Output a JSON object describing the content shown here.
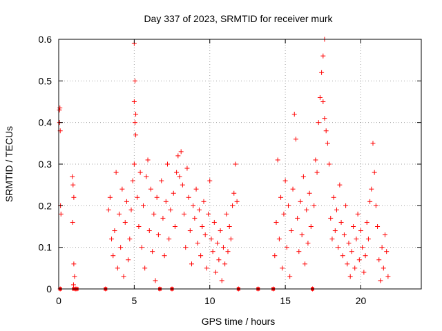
{
  "chart_data": {
    "type": "scatter",
    "title": "Day 337 of 2023, SRMTID for receiver murk",
    "xlabel": "GPS time / hours",
    "ylabel": "SRMTID / TECUs",
    "xlim": [
      0,
      24
    ],
    "ylim": [
      0,
      0.6
    ],
    "xticks": [
      0,
      5,
      10,
      15,
      20
    ],
    "xtick_labels": [
      "0",
      "5",
      "10",
      "15",
      "20"
    ],
    "yticks": [
      0,
      0.1,
      0.2,
      0.3,
      0.4,
      0.5,
      0.6
    ],
    "ytick_labels": [
      "0",
      "0.1",
      "0.2",
      "0.3",
      "0.4",
      "0.5",
      "0.6"
    ],
    "grid": true,
    "marker": "plus",
    "color": "#ff0000",
    "series": [
      {
        "name": "SRMTID",
        "points": [
          [
            0.05,
            0.43
          ],
          [
            0.08,
            0.435
          ],
          [
            0.06,
            0.4
          ],
          [
            0.1,
            0.38
          ],
          [
            0.12,
            0.2
          ],
          [
            0.15,
            0.18
          ],
          [
            0.1,
            0.0
          ],
          [
            0.9,
            0.27
          ],
          [
            0.95,
            0.25
          ],
          [
            1.0,
            0.22
          ],
          [
            0.92,
            0.16
          ],
          [
            1.0,
            0.06
          ],
          [
            1.05,
            0.03
          ],
          [
            0.98,
            0.01
          ],
          [
            1.1,
            0.0
          ],
          [
            1.2,
            0.0
          ],
          [
            3.1,
            0.0
          ],
          [
            3.3,
            0.19
          ],
          [
            3.4,
            0.22
          ],
          [
            3.5,
            0.12
          ],
          [
            3.6,
            0.08
          ],
          [
            3.7,
            0.14
          ],
          [
            3.8,
            0.28
          ],
          [
            3.9,
            0.05
          ],
          [
            4.0,
            0.18
          ],
          [
            4.1,
            0.1
          ],
          [
            4.2,
            0.24
          ],
          [
            4.3,
            0.03
          ],
          [
            4.4,
            0.16
          ],
          [
            4.5,
            0.21
          ],
          [
            4.6,
            0.07
          ],
          [
            4.7,
            0.12
          ],
          [
            4.8,
            0.19
          ],
          [
            4.9,
            0.26
          ],
          [
            5.0,
            0.59
          ],
          [
            5.05,
            0.5
          ],
          [
            5.0,
            0.45
          ],
          [
            5.1,
            0.42
          ],
          [
            5.05,
            0.4
          ],
          [
            5.1,
            0.37
          ],
          [
            5.0,
            0.3
          ],
          [
            5.2,
            0.22
          ],
          [
            5.3,
            0.15
          ],
          [
            5.4,
            0.28
          ],
          [
            5.5,
            0.1
          ],
          [
            5.6,
            0.2
          ],
          [
            5.7,
            0.05
          ],
          [
            5.8,
            0.27
          ],
          [
            5.9,
            0.31
          ],
          [
            6.0,
            0.14
          ],
          [
            6.1,
            0.24
          ],
          [
            6.2,
            0.09
          ],
          [
            6.3,
            0.18
          ],
          [
            6.4,
            0.02
          ],
          [
            6.5,
            0.22
          ],
          [
            6.6,
            0.13
          ],
          [
            6.7,
            0.0
          ],
          [
            6.8,
            0.26
          ],
          [
            6.9,
            0.17
          ],
          [
            7.0,
            0.08
          ],
          [
            7.1,
            0.21
          ],
          [
            7.2,
            0.3
          ],
          [
            7.3,
            0.12
          ],
          [
            7.4,
            0.19
          ],
          [
            7.5,
            0.0
          ],
          [
            7.6,
            0.23
          ],
          [
            7.7,
            0.15
          ],
          [
            7.8,
            0.28
          ],
          [
            7.9,
            0.32
          ],
          [
            8.0,
            0.27
          ],
          [
            8.1,
            0.33
          ],
          [
            8.2,
            0.25
          ],
          [
            8.3,
            0.18
          ],
          [
            8.4,
            0.1
          ],
          [
            8.5,
            0.29
          ],
          [
            8.6,
            0.22
          ],
          [
            8.7,
            0.14
          ],
          [
            8.8,
            0.06
          ],
          [
            8.9,
            0.2
          ],
          [
            9.0,
            0.17
          ],
          [
            9.1,
            0.24
          ],
          [
            9.2,
            0.11
          ],
          [
            9.3,
            0.19
          ],
          [
            9.4,
            0.08
          ],
          [
            9.5,
            0.15
          ],
          [
            9.6,
            0.21
          ],
          [
            9.7,
            0.13
          ],
          [
            9.8,
            0.05
          ],
          [
            9.9,
            0.18
          ],
          [
            10.0,
            0.26
          ],
          [
            10.1,
            0.12
          ],
          [
            10.2,
            0.09
          ],
          [
            10.3,
            0.16
          ],
          [
            10.4,
            0.04
          ],
          [
            10.5,
            0.11
          ],
          [
            10.6,
            0.07
          ],
          [
            10.7,
            0.14
          ],
          [
            10.8,
            0.02
          ],
          [
            10.9,
            0.1
          ],
          [
            11.0,
            0.06
          ],
          [
            11.1,
            0.18
          ],
          [
            11.2,
            0.09
          ],
          [
            11.3,
            0.15
          ],
          [
            11.4,
            0.12
          ],
          [
            11.5,
            0.2
          ],
          [
            11.6,
            0.23
          ],
          [
            11.7,
            0.3
          ],
          [
            11.8,
            0.21
          ],
          [
            11.9,
            0.0
          ],
          [
            13.2,
            0.0
          ],
          [
            14.2,
            0.0
          ],
          [
            14.3,
            0.08
          ],
          [
            14.4,
            0.16
          ],
          [
            14.5,
            0.31
          ],
          [
            14.6,
            0.12
          ],
          [
            14.7,
            0.22
          ],
          [
            14.8,
            0.05
          ],
          [
            14.9,
            0.18
          ],
          [
            15.0,
            0.26
          ],
          [
            15.1,
            0.1
          ],
          [
            15.2,
            0.2
          ],
          [
            15.3,
            0.03
          ],
          [
            15.4,
            0.14
          ],
          [
            15.5,
            0.24
          ],
          [
            15.6,
            0.42
          ],
          [
            15.7,
            0.36
          ],
          [
            15.8,
            0.17
          ],
          [
            15.9,
            0.09
          ],
          [
            16.0,
            0.21
          ],
          [
            16.1,
            0.13
          ],
          [
            16.2,
            0.27
          ],
          [
            16.3,
            0.06
          ],
          [
            16.4,
            0.19
          ],
          [
            16.5,
            0.11
          ],
          [
            16.6,
            0.23
          ],
          [
            16.7,
            0.15
          ],
          [
            16.8,
            0.0
          ],
          [
            16.9,
            0.2
          ],
          [
            17.0,
            0.31
          ],
          [
            17.1,
            0.28
          ],
          [
            17.2,
            0.4
          ],
          [
            17.3,
            0.46
          ],
          [
            17.4,
            0.52
          ],
          [
            17.5,
            0.56
          ],
          [
            17.6,
            0.6
          ],
          [
            17.5,
            0.45
          ],
          [
            17.6,
            0.41
          ],
          [
            17.7,
            0.38
          ],
          [
            17.8,
            0.35
          ],
          [
            17.9,
            0.3
          ],
          [
            18.0,
            0.17
          ],
          [
            18.1,
            0.12
          ],
          [
            18.2,
            0.22
          ],
          [
            18.3,
            0.14
          ],
          [
            18.4,
            0.19
          ],
          [
            18.5,
            0.1
          ],
          [
            18.6,
            0.25
          ],
          [
            18.7,
            0.16
          ],
          [
            18.8,
            0.08
          ],
          [
            18.9,
            0.13
          ],
          [
            19.0,
            0.2
          ],
          [
            19.1,
            0.06
          ],
          [
            19.2,
            0.11
          ],
          [
            19.3,
            0.03
          ],
          [
            19.4,
            0.09
          ],
          [
            19.5,
            0.15
          ],
          [
            19.6,
            0.05
          ],
          [
            19.7,
            0.12
          ],
          [
            19.8,
            0.18
          ],
          [
            19.9,
            0.07
          ],
          [
            20.0,
            0.14
          ],
          [
            20.1,
            0.1
          ],
          [
            20.2,
            0.04
          ],
          [
            20.3,
            0.08
          ],
          [
            20.4,
            0.16
          ],
          [
            20.5,
            0.12
          ],
          [
            20.6,
            0.21
          ],
          [
            20.7,
            0.24
          ],
          [
            20.8,
            0.35
          ],
          [
            20.9,
            0.28
          ],
          [
            21.0,
            0.2
          ],
          [
            21.1,
            0.15
          ],
          [
            21.2,
            0.07
          ],
          [
            21.3,
            0.02
          ],
          [
            21.4,
            0.1
          ],
          [
            21.5,
            0.05
          ],
          [
            21.6,
            0.13
          ],
          [
            21.7,
            0.09
          ],
          [
            21.8,
            0.03
          ]
        ]
      }
    ],
    "zero_markers_x": [
      0.1,
      1.0,
      1.2,
      3.1,
      6.7,
      7.5,
      11.9,
      13.2,
      14.2,
      16.8
    ]
  }
}
